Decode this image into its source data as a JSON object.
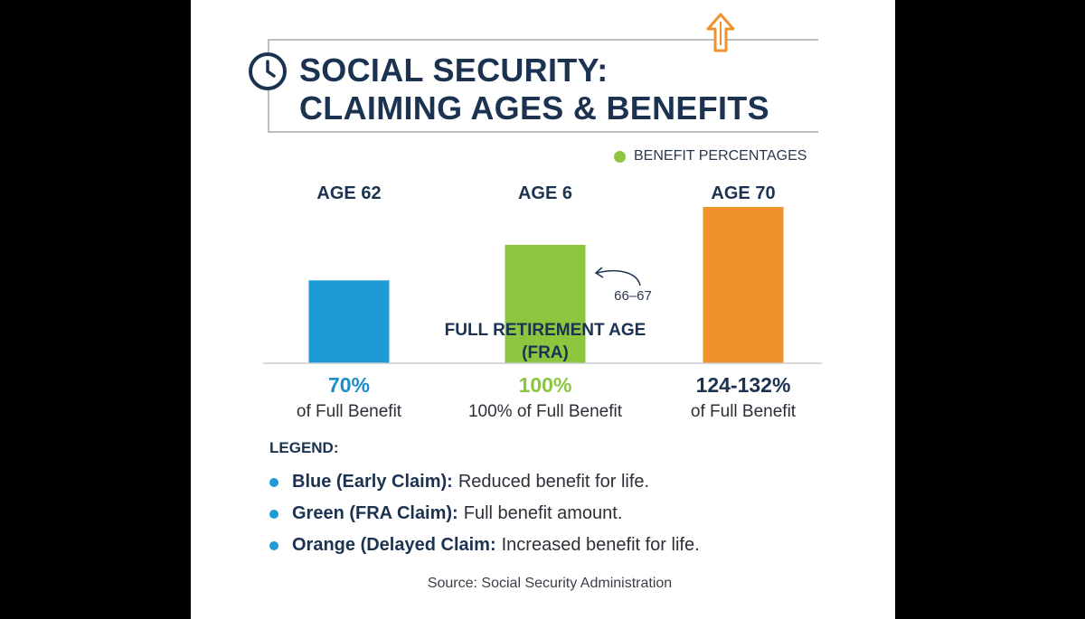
{
  "title": {
    "line1": "SOCIAL SECURITY:",
    "line2": "CLAIMING AGES & BENEFITS"
  },
  "legend_top": {
    "label": "BENEFIT PERCENTAGES",
    "color": "#8cc63f"
  },
  "chart_data": {
    "type": "bar",
    "categories": [
      "AGE 62",
      "AGE 6",
      "AGE 70"
    ],
    "values": [
      70,
      100,
      132
    ],
    "colors": [
      "#1e9ad6",
      "#8cc63f",
      "#f0922c"
    ],
    "ylim": [
      0,
      132
    ],
    "value_labels": [
      "70%",
      "100%",
      "124-132%"
    ],
    "value_label_colors": [
      "#1e8ccc",
      "#8cc63f",
      "#1b3350"
    ],
    "sub_labels": [
      "of Full Benefit",
      "100% of Full Benefit",
      "of Full Benefit"
    ],
    "annotations": {
      "fra_label_line1": "FULL RETIREMENT AGE",
      "fra_label_line2": "(FRA)",
      "fra_range": "66–67"
    },
    "grid": false,
    "legend_position": "top-right"
  },
  "legend": {
    "title": "LEGEND:",
    "items": [
      {
        "bold": "Blue (Early Claim):",
        "text": "Reduced benefit for life.",
        "color": "#1e9ad6"
      },
      {
        "bold": "Green (FRA Claim):",
        "text": "Full benefit amount.",
        "color": "#1e9ad6"
      },
      {
        "bold": "Orange (Delayed Claim:",
        "text": "Increased benefit for life.",
        "color": "#1e9ad6"
      }
    ]
  },
  "source": "Source: Social Security Administration",
  "icons": {
    "header_left": "clock-icon",
    "header_top": "up-arrow-icon"
  },
  "colors": {
    "title": "#1b3350",
    "frame": "#b9bec4",
    "arrow": "#f0922c"
  }
}
